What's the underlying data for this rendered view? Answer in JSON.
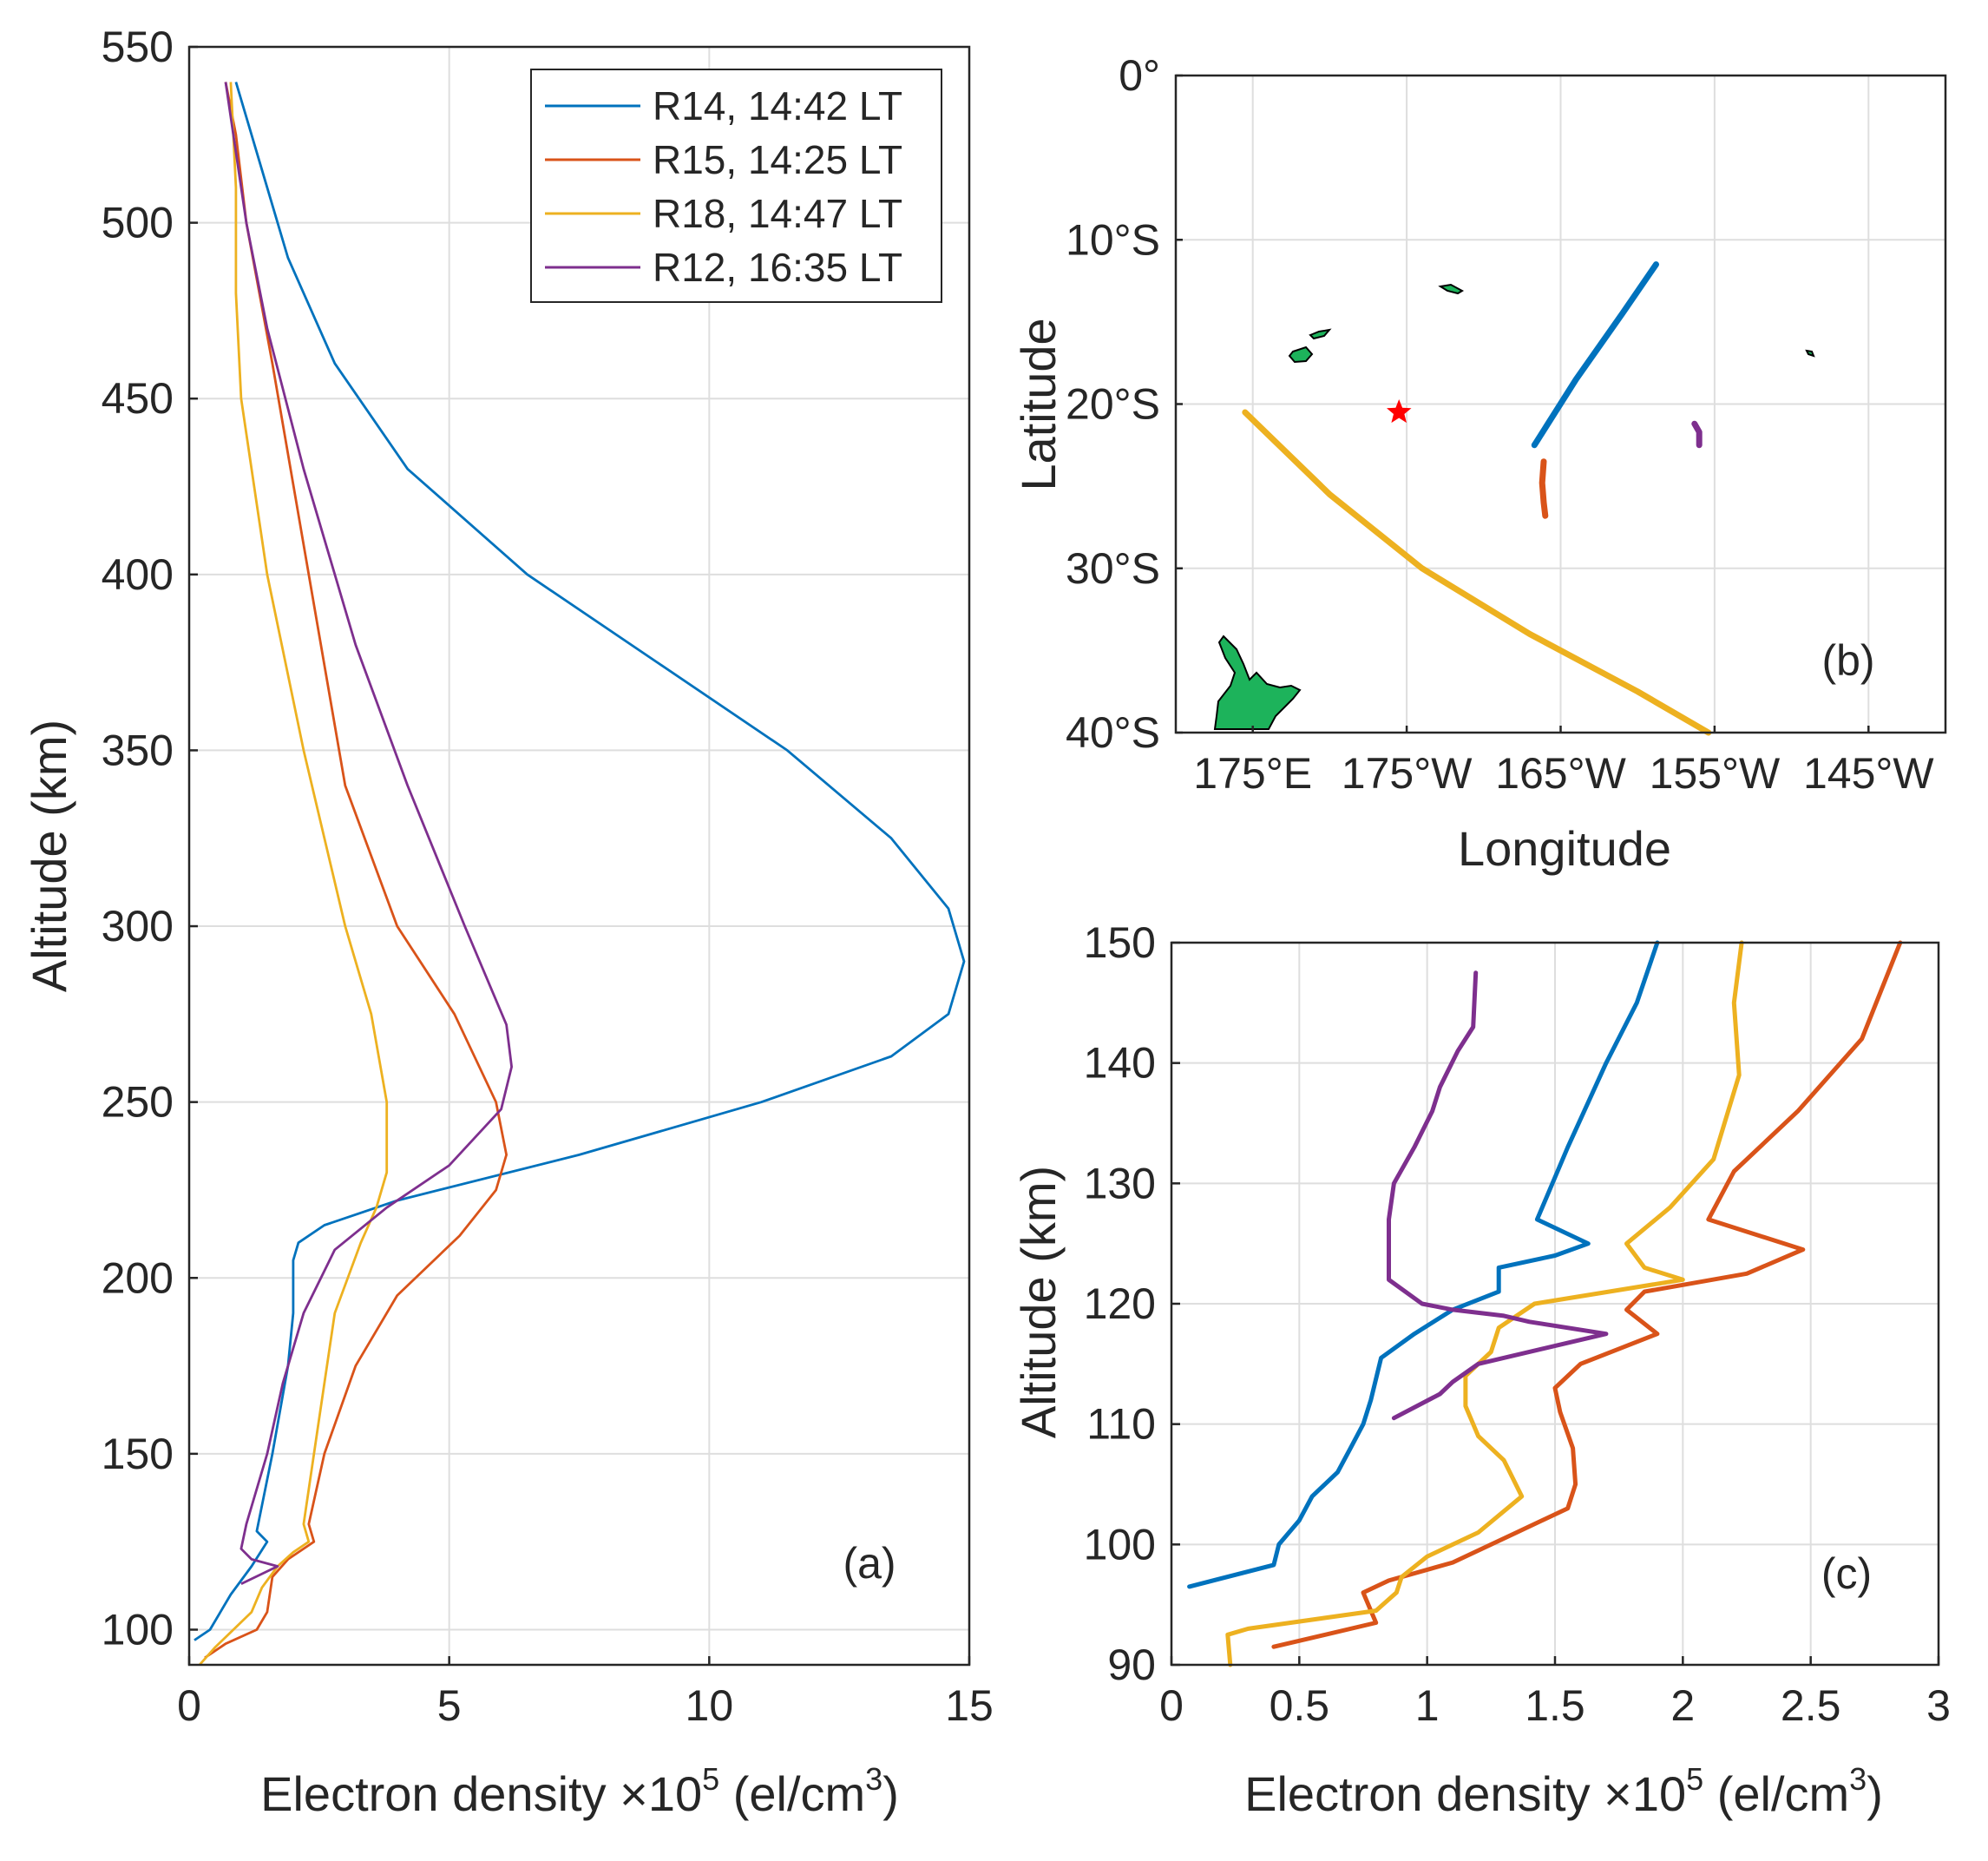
{
  "colors": {
    "R14": "#0072bd",
    "R15": "#d95319",
    "R18": "#edb120",
    "R12": "#7e2f8e",
    "land": "#1db35b",
    "star": "#ff0000"
  },
  "chart_data": [
    {
      "id": "a",
      "type": "line",
      "panel_label": "(a)",
      "xlabel": "Electron density ×10",
      "xlabel_sup": "5",
      "xlabel_tail": " (el/cm",
      "xlabel_sup2": "3",
      "xlabel_end": ")",
      "ylabel": "Altitude (km)",
      "xlim": [
        0,
        15
      ],
      "ylim": [
        90,
        550
      ],
      "xticks": [
        0,
        5,
        10,
        15
      ],
      "xtick_labels": [
        "0",
        "5",
        "10",
        "15"
      ],
      "yticks": [
        100,
        150,
        200,
        250,
        300,
        350,
        400,
        450,
        500,
        550
      ],
      "ytick_labels": [
        "100",
        "150",
        "200",
        "250",
        "300",
        "350",
        "400",
        "450",
        "500",
        "550"
      ],
      "grid": true,
      "legend_position": "top-right",
      "series": [
        {
          "key": "R14",
          "name": "R14, 14:42 LT",
          "x": [
            0.1,
            0.4,
            0.8,
            1.2,
            1.5,
            1.3,
            1.6,
            1.9,
            2.0,
            2.0,
            2.0,
            2.1,
            2.6,
            4.0,
            7.5,
            11.0,
            13.5,
            14.6,
            14.9,
            14.6,
            13.5,
            11.5,
            9.0,
            6.5,
            4.2,
            2.8,
            1.9,
            1.4,
            1.1,
            0.9
          ],
          "y": [
            97,
            100,
            110,
            118,
            125,
            128,
            150,
            175,
            190,
            200,
            205,
            210,
            215,
            222,
            235,
            250,
            263,
            275,
            290,
            305,
            325,
            350,
            375,
            400,
            430,
            460,
            490,
            515,
            530,
            540
          ]
        },
        {
          "key": "R15",
          "name": "R15, 14:25 LT",
          "x": [
            0.3,
            0.7,
            1.3,
            1.5,
            1.6,
            1.9,
            2.4,
            2.3,
            2.6,
            3.2,
            4.0,
            5.2,
            5.9,
            6.1,
            5.9,
            5.1,
            4.0,
            3.0,
            2.3,
            1.6,
            1.1,
            0.9,
            0.7
          ],
          "y": [
            92,
            96,
            100,
            105,
            115,
            120,
            125,
            130,
            150,
            175,
            195,
            212,
            225,
            235,
            250,
            275,
            300,
            340,
            400,
            460,
            500,
            525,
            540
          ]
        },
        {
          "key": "R18",
          "name": "R18, 14:47 LT",
          "x": [
            0.2,
            0.5,
            1.2,
            1.4,
            1.7,
            2.0,
            2.3,
            2.2,
            2.5,
            2.8,
            3.3,
            3.6,
            3.8,
            3.8,
            3.5,
            3.0,
            2.2,
            1.5,
            1.0,
            0.9,
            0.9,
            0.8
          ],
          "y": [
            90,
            95,
            105,
            112,
            118,
            122,
            125,
            130,
            160,
            190,
            210,
            220,
            230,
            250,
            275,
            300,
            350,
            400,
            450,
            480,
            510,
            540
          ]
        },
        {
          "key": "R12",
          "name": "R12, 16:35 LT",
          "x": [
            1.0,
            1.7,
            1.2,
            1.0,
            1.1,
            1.5,
            1.8,
            2.2,
            2.8,
            3.8,
            5.0,
            6.0,
            6.2,
            6.1,
            5.3,
            4.2,
            3.2,
            2.2,
            1.5,
            1.1,
            0.9,
            0.7
          ],
          "y": [
            113,
            118,
            120,
            123,
            130,
            150,
            170,
            190,
            208,
            220,
            232,
            248,
            260,
            272,
            300,
            340,
            380,
            430,
            470,
            500,
            520,
            540
          ]
        }
      ]
    },
    {
      "id": "b",
      "type": "map",
      "panel_label": "(b)",
      "xlabel": "Longitude",
      "ylabel": "Latitude",
      "xlim": [
        170,
        220
      ],
      "ylim": [
        -40,
        0
      ],
      "xticks": [
        175,
        185,
        195,
        205,
        215
      ],
      "xtick_labels": [
        "175°E",
        "175°W",
        "165°W",
        "155°W",
        "145°W"
      ],
      "yticks": [
        0,
        -10,
        -20,
        -30,
        -40
      ],
      "ytick_labels": [
        "0°",
        "10°S",
        "20°S",
        "30°S",
        "40°S"
      ],
      "grid": true,
      "tracks": [
        {
          "key": "R14",
          "lon": [
            193.3,
            196.0,
            199.0,
            201.2
          ],
          "lat": [
            -22.5,
            -18.5,
            -14.5,
            -11.5
          ]
        },
        {
          "key": "R15",
          "lon": [
            193.9,
            193.8,
            193.9,
            194.0
          ],
          "lat": [
            -23.5,
            -24.8,
            -26.0,
            -26.8
          ]
        },
        {
          "key": "R18",
          "lon": [
            174.5,
            180.0,
            186.0,
            193.0,
            200.0,
            204.6
          ],
          "lat": [
            -20.5,
            -25.5,
            -30.0,
            -34.0,
            -37.5,
            -40.0
          ]
        },
        {
          "key": "R12",
          "lon": [
            203.7,
            204.0,
            204.0
          ],
          "lat": [
            -21.2,
            -21.7,
            -22.5
          ]
        }
      ],
      "star": {
        "lon": 184.5,
        "lat": -20.5
      }
    },
    {
      "id": "c",
      "type": "line",
      "panel_label": "(c)",
      "xlabel": "Electron density ×10",
      "xlabel_sup": "5",
      "xlabel_tail": " (el/cm",
      "xlabel_sup2": "3",
      "xlabel_end": ")",
      "ylabel": "Altitude (km)",
      "xlim": [
        0,
        3
      ],
      "ylim": [
        90,
        150
      ],
      "xticks": [
        0,
        0.5,
        1,
        1.5,
        2,
        2.5,
        3
      ],
      "xtick_labels": [
        "0",
        "0.5",
        "1",
        "1.5",
        "2",
        "2.5",
        "3"
      ],
      "yticks": [
        90,
        100,
        110,
        120,
        130,
        140,
        150
      ],
      "ytick_labels": [
        "90",
        "100",
        "110",
        "120",
        "130",
        "140",
        "150"
      ],
      "grid": true,
      "series": [
        {
          "key": "R14",
          "x": [
            0.07,
            0.4,
            0.42,
            0.5,
            0.55,
            0.65,
            0.7,
            0.75,
            0.78,
            0.82,
            0.95,
            1.1,
            1.28,
            1.28,
            1.5,
            1.63,
            1.43,
            1.55,
            1.7,
            1.82,
            1.9
          ],
          "y": [
            96.5,
            98.3,
            100,
            102,
            104,
            106,
            108,
            110,
            112,
            115.5,
            117.5,
            119.5,
            121,
            123,
            124,
            125,
            127,
            133,
            140,
            145,
            150
          ]
        },
        {
          "key": "R15",
          "x": [
            0.4,
            0.8,
            0.75,
            0.85,
            1.1,
            1.35,
            1.55,
            1.58,
            1.57,
            1.52,
            1.5,
            1.6,
            1.9,
            1.78,
            1.85,
            2.25,
            2.47,
            2.1,
            2.2,
            2.45,
            2.7,
            2.85
          ],
          "y": [
            91.5,
            93.5,
            96,
            97,
            98.5,
            101,
            103,
            105,
            108,
            111,
            113,
            115,
            117.5,
            119.5,
            121,
            122.5,
            124.5,
            127,
            131,
            136,
            142,
            150
          ]
        },
        {
          "key": "R18",
          "x": [
            0.23,
            0.22,
            0.3,
            0.8,
            0.88,
            0.9,
            1.0,
            1.2,
            1.37,
            1.3,
            1.2,
            1.15,
            1.15,
            1.25,
            1.28,
            1.42,
            2.0,
            1.85,
            1.78,
            1.95,
            2.12,
            2.22,
            2.2,
            2.23
          ],
          "y": [
            90,
            92.5,
            93,
            94.5,
            96,
            97.3,
            99,
            101,
            104,
            107,
            109,
            111.5,
            114,
            116,
            118,
            120,
            122,
            123,
            125,
            128,
            132,
            139,
            145,
            150
          ]
        },
        {
          "key": "R12",
          "x": [
            0.87,
            1.05,
            1.1,
            1.2,
            1.7,
            1.4,
            1.3,
            1.1,
            0.98,
            0.85,
            0.85,
            0.85,
            0.87,
            0.95,
            1.02,
            1.05,
            1.12,
            1.18,
            1.19
          ],
          "y": [
            110.5,
            112.5,
            113.5,
            115,
            117.5,
            118.5,
            119,
            119.5,
            120,
            122,
            125,
            127,
            130,
            133,
            136,
            138,
            141,
            143,
            147.5
          ]
        }
      ]
    }
  ]
}
